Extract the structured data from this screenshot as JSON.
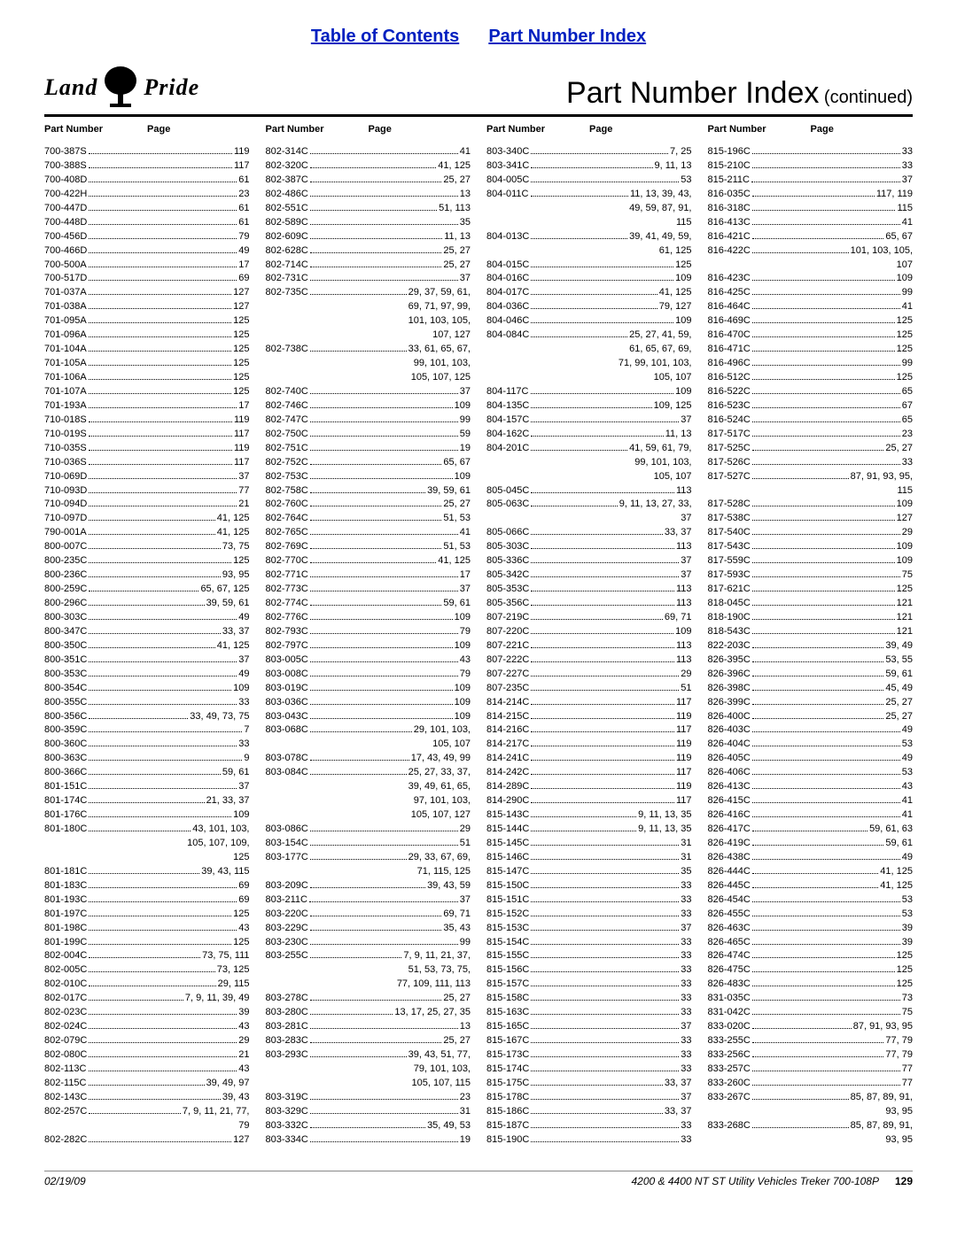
{
  "links": {
    "toc": "Table of Contents",
    "pni": "Part Number Index"
  },
  "logo": {
    "left": "Land",
    "right": "Pride"
  },
  "title": {
    "main": "Part Number Index",
    "cont": " (continued)"
  },
  "colhead": {
    "pn": "Part Number",
    "pg": "Page"
  },
  "footer": {
    "date": "02/19/09",
    "model": "4200 & 4400 NT ST Utility Vehicles Treker 700-108P",
    "page": "129"
  },
  "cols": [
    [
      {
        "p": "700-387S",
        "g": "119"
      },
      {
        "p": "700-388S",
        "g": "117"
      },
      {
        "p": "700-408D",
        "g": "61"
      },
      {
        "p": "700-422H",
        "g": "23"
      },
      {
        "p": "700-447D",
        "g": "61"
      },
      {
        "p": "700-448D",
        "g": "61"
      },
      {
        "p": "700-456D",
        "g": "79"
      },
      {
        "p": "700-466D",
        "g": "49"
      },
      {
        "p": "700-500A",
        "g": "17"
      },
      {
        "p": "700-517D",
        "g": "69"
      },
      {
        "p": "701-037A",
        "g": "127"
      },
      {
        "p": "701-038A",
        "g": "127"
      },
      {
        "p": "701-095A",
        "g": "125"
      },
      {
        "p": "701-096A",
        "g": "125"
      },
      {
        "p": "701-104A",
        "g": "125"
      },
      {
        "p": "701-105A",
        "g": "125"
      },
      {
        "p": "701-106A",
        "g": "125"
      },
      {
        "p": "701-107A",
        "g": "125"
      },
      {
        "p": "701-193A",
        "g": "17"
      },
      {
        "p": "710-018S",
        "g": "119"
      },
      {
        "p": "710-019S",
        "g": "117"
      },
      {
        "p": "710-035S",
        "g": "119"
      },
      {
        "p": "710-036S",
        "g": "117"
      },
      {
        "p": "710-069D",
        "g": "37"
      },
      {
        "p": "710-093D",
        "g": "77"
      },
      {
        "p": "710-094D",
        "g": "21"
      },
      {
        "p": "710-097D",
        "g": "41, 125"
      },
      {
        "p": "790-001A",
        "g": "41, 125"
      },
      {
        "p": "800-007C",
        "g": "73, 75"
      },
      {
        "p": "800-235C",
        "g": "125"
      },
      {
        "p": "800-236C",
        "g": "93, 95"
      },
      {
        "p": "800-259C",
        "g": "65, 67, 125"
      },
      {
        "p": "800-296C",
        "g": "39, 59, 61"
      },
      {
        "p": "800-303C",
        "g": "49"
      },
      {
        "p": "800-347C",
        "g": "33, 37"
      },
      {
        "p": "800-350C",
        "g": "41, 125"
      },
      {
        "p": "800-351C",
        "g": "37"
      },
      {
        "p": "800-353C",
        "g": "49"
      },
      {
        "p": "800-354C",
        "g": "109"
      },
      {
        "p": "800-355C",
        "g": "33"
      },
      {
        "p": "800-356C",
        "g": "33, 49, 73, 75"
      },
      {
        "p": "800-359C",
        "g": "7"
      },
      {
        "p": "800-360C",
        "g": "33"
      },
      {
        "p": "800-363C",
        "g": "9"
      },
      {
        "p": "800-366C",
        "g": "59, 61"
      },
      {
        "p": "801-151C",
        "g": "37"
      },
      {
        "p": "801-174C",
        "g": "21, 33, 37"
      },
      {
        "p": "801-176C",
        "g": "109"
      },
      {
        "p": "801-180C",
        "g": "43, 101, 103,"
      },
      {
        "c": true,
        "g": "105, 107, 109,"
      },
      {
        "c": true,
        "g": "125"
      },
      {
        "p": "801-181C",
        "g": "39, 43, 115"
      },
      {
        "p": "801-183C",
        "g": "69"
      },
      {
        "p": "801-193C",
        "g": "69"
      },
      {
        "p": "801-197C",
        "g": "125"
      },
      {
        "p": "801-198C",
        "g": "43"
      },
      {
        "p": "801-199C",
        "g": "125"
      },
      {
        "p": "802-004C",
        "g": "73, 75, 111"
      },
      {
        "p": "802-005C",
        "g": "73, 125"
      },
      {
        "p": "802-010C",
        "g": "29, 115"
      },
      {
        "p": "802-017C",
        "g": "7, 9, 11, 39, 49"
      },
      {
        "p": "802-023C",
        "g": "39"
      },
      {
        "p": "802-024C",
        "g": "43"
      },
      {
        "p": "802-079C",
        "g": "29"
      },
      {
        "p": "802-080C",
        "g": "21"
      },
      {
        "p": "802-113C",
        "g": "43"
      },
      {
        "p": "802-115C",
        "g": "39, 49, 97"
      },
      {
        "p": "802-143C",
        "g": "39, 43"
      },
      {
        "p": "802-257C",
        "g": "7, 9, 11, 21, 77,"
      },
      {
        "c": true,
        "g": "79"
      },
      {
        "p": "802-282C",
        "g": "127"
      }
    ],
    [
      {
        "p": "802-314C",
        "g": "41"
      },
      {
        "p": "802-320C",
        "g": "41, 125"
      },
      {
        "p": "802-387C",
        "g": "25, 27"
      },
      {
        "p": "802-486C",
        "g": "13"
      },
      {
        "p": "802-551C",
        "g": "51, 113"
      },
      {
        "p": "802-589C",
        "g": "35"
      },
      {
        "p": "802-609C",
        "g": "11, 13"
      },
      {
        "p": "802-628C",
        "g": "25, 27"
      },
      {
        "p": "802-714C",
        "g": "25, 27"
      },
      {
        "p": "802-731C",
        "g": "37"
      },
      {
        "p": "802-735C",
        "g": "29, 37, 59, 61,"
      },
      {
        "c": true,
        "g": "69, 71, 97, 99,"
      },
      {
        "c": true,
        "g": "101, 103, 105,"
      },
      {
        "c": true,
        "g": "107, 127"
      },
      {
        "p": "802-738C",
        "g": "33, 61, 65, 67,"
      },
      {
        "c": true,
        "g": "99, 101, 103,"
      },
      {
        "c": true,
        "g": "105, 107, 125"
      },
      {
        "p": "802-740C",
        "g": "37"
      },
      {
        "p": "802-746C",
        "g": "109"
      },
      {
        "p": "802-747C",
        "g": "99"
      },
      {
        "p": "802-750C",
        "g": "59"
      },
      {
        "p": "802-751C",
        "g": "19"
      },
      {
        "p": "802-752C",
        "g": "65, 67"
      },
      {
        "p": "802-753C",
        "g": "109"
      },
      {
        "p": "802-758C",
        "g": "39, 59, 61"
      },
      {
        "p": "802-760C",
        "g": "25, 27"
      },
      {
        "p": "802-764C",
        "g": "51, 53"
      },
      {
        "p": "802-765C",
        "g": "41"
      },
      {
        "p": "802-769C",
        "g": "51, 53"
      },
      {
        "p": "802-770C",
        "g": "41, 125"
      },
      {
        "p": "802-771C",
        "g": "17"
      },
      {
        "p": "802-773C",
        "g": "37"
      },
      {
        "p": "802-774C",
        "g": "59, 61"
      },
      {
        "p": "802-776C",
        "g": "109"
      },
      {
        "p": "802-793C",
        "g": "79"
      },
      {
        "p": "802-797C",
        "g": "109"
      },
      {
        "p": "803-005C",
        "g": "43"
      },
      {
        "p": "803-008C",
        "g": "79"
      },
      {
        "p": "803-019C",
        "g": "109"
      },
      {
        "p": "803-036C",
        "g": "109"
      },
      {
        "p": "803-043C",
        "g": "109"
      },
      {
        "p": "803-068C",
        "g": "29, 101, 103,"
      },
      {
        "c": true,
        "g": "105, 107"
      },
      {
        "p": "803-078C",
        "g": "17, 43, 49, 99"
      },
      {
        "p": "803-084C",
        "g": "25, 27, 33, 37,"
      },
      {
        "c": true,
        "g": "39, 49, 61, 65,"
      },
      {
        "c": true,
        "g": "97, 101, 103,"
      },
      {
        "c": true,
        "g": "105, 107, 127"
      },
      {
        "p": "803-086C",
        "g": "29"
      },
      {
        "p": "803-154C",
        "g": "51"
      },
      {
        "p": "803-177C",
        "g": "29, 33, 67, 69,"
      },
      {
        "c": true,
        "g": "71, 115, 125"
      },
      {
        "p": "803-209C",
        "g": "39, 43, 59"
      },
      {
        "p": "803-211C",
        "g": "37"
      },
      {
        "p": "803-220C",
        "g": "69, 71"
      },
      {
        "p": "803-229C",
        "g": "35, 43"
      },
      {
        "p": "803-230C",
        "g": "99"
      },
      {
        "p": "803-255C",
        "g": "7, 9, 11, 21, 37,"
      },
      {
        "c": true,
        "g": "51, 53, 73, 75,"
      },
      {
        "c": true,
        "g": "77, 109, 111, 113"
      },
      {
        "p": "803-278C",
        "g": "25, 27"
      },
      {
        "p": "803-280C",
        "g": "13, 17, 25, 27, 35"
      },
      {
        "p": "803-281C",
        "g": "13"
      },
      {
        "p": "803-283C",
        "g": "25, 27"
      },
      {
        "p": "803-293C",
        "g": "39, 43, 51, 77,"
      },
      {
        "c": true,
        "g": "79, 101, 103,"
      },
      {
        "c": true,
        "g": "105, 107, 115"
      },
      {
        "p": "803-319C",
        "g": "23"
      },
      {
        "p": "803-329C",
        "g": "31"
      },
      {
        "p": "803-332C",
        "g": "35, 49, 53"
      },
      {
        "p": "803-334C",
        "g": "19"
      }
    ],
    [
      {
        "p": "803-340C",
        "g": "7, 25"
      },
      {
        "p": "803-341C",
        "g": "9, 11, 13"
      },
      {
        "p": "804-005C",
        "g": "53"
      },
      {
        "p": "804-011C",
        "g": "11, 13, 39, 43,"
      },
      {
        "c": true,
        "g": "49, 59, 87, 91,"
      },
      {
        "c": true,
        "g": "115"
      },
      {
        "p": "804-013C",
        "g": "39, 41, 49, 59,"
      },
      {
        "c": true,
        "g": "61, 125"
      },
      {
        "p": "804-015C",
        "g": "125"
      },
      {
        "p": "804-016C",
        "g": "109"
      },
      {
        "p": "804-017C",
        "g": "41, 125"
      },
      {
        "p": "804-036C",
        "g": "79, 127"
      },
      {
        "p": "804-046C",
        "g": "109"
      },
      {
        "p": "804-084C",
        "g": "25, 27, 41, 59,"
      },
      {
        "c": true,
        "g": "61, 65, 67, 69,"
      },
      {
        "c": true,
        "g": "71, 99, 101, 103,"
      },
      {
        "c": true,
        "g": "105, 107"
      },
      {
        "p": "804-117C",
        "g": "109"
      },
      {
        "p": "804-135C",
        "g": "109, 125"
      },
      {
        "p": "804-157C",
        "g": "37"
      },
      {
        "p": "804-162C",
        "g": "11, 13"
      },
      {
        "p": "804-201C",
        "g": "41, 59, 61, 79,"
      },
      {
        "c": true,
        "g": "99, 101, 103,"
      },
      {
        "c": true,
        "g": "105, 107"
      },
      {
        "p": "805-045C",
        "g": "113"
      },
      {
        "p": "805-063C",
        "g": "9, 11, 13, 27, 33,"
      },
      {
        "c": true,
        "g": "37"
      },
      {
        "p": "805-066C",
        "g": "33, 37"
      },
      {
        "p": "805-303C",
        "g": "113"
      },
      {
        "p": "805-336C",
        "g": "37"
      },
      {
        "p": "805-342C",
        "g": "37"
      },
      {
        "p": "805-353C",
        "g": "113"
      },
      {
        "p": "805-356C",
        "g": "113"
      },
      {
        "p": "807-219C",
        "g": "69, 71"
      },
      {
        "p": "807-220C",
        "g": "109"
      },
      {
        "p": "807-221C",
        "g": "113"
      },
      {
        "p": "807-222C",
        "g": "113"
      },
      {
        "p": "807-227C",
        "g": "29"
      },
      {
        "p": "807-235C",
        "g": "51"
      },
      {
        "p": "814-214C",
        "g": "117"
      },
      {
        "p": "814-215C",
        "g": "119"
      },
      {
        "p": "814-216C",
        "g": "117"
      },
      {
        "p": "814-217C",
        "g": "119"
      },
      {
        "p": "814-241C",
        "g": "119"
      },
      {
        "p": "814-242C",
        "g": "117"
      },
      {
        "p": "814-289C",
        "g": "119"
      },
      {
        "p": "814-290C",
        "g": "117"
      },
      {
        "p": "815-143C",
        "g": "9, 11, 13, 35"
      },
      {
        "p": "815-144C",
        "g": "9, 11, 13, 35"
      },
      {
        "p": "815-145C",
        "g": "31"
      },
      {
        "p": "815-146C",
        "g": "31"
      },
      {
        "p": "815-147C",
        "g": "35"
      },
      {
        "p": "815-150C",
        "g": "33"
      },
      {
        "p": "815-151C",
        "g": "33"
      },
      {
        "p": "815-152C",
        "g": "33"
      },
      {
        "p": "815-153C",
        "g": "37"
      },
      {
        "p": "815-154C",
        "g": "33"
      },
      {
        "p": "815-155C",
        "g": "33"
      },
      {
        "p": "815-156C",
        "g": "33"
      },
      {
        "p": "815-157C",
        "g": "33"
      },
      {
        "p": "815-158C",
        "g": "33"
      },
      {
        "p": "815-163C",
        "g": "33"
      },
      {
        "p": "815-165C",
        "g": "37"
      },
      {
        "p": "815-167C",
        "g": "33"
      },
      {
        "p": "815-173C",
        "g": "33"
      },
      {
        "p": "815-174C",
        "g": "33"
      },
      {
        "p": "815-175C",
        "g": "33, 37"
      },
      {
        "p": "815-178C",
        "g": "37"
      },
      {
        "p": "815-186C",
        "g": "33, 37"
      },
      {
        "p": "815-187C",
        "g": "33"
      },
      {
        "p": "815-190C",
        "g": "33"
      }
    ],
    [
      {
        "p": "815-196C",
        "g": "33"
      },
      {
        "p": "815-210C",
        "g": "33"
      },
      {
        "p": "815-211C",
        "g": "37"
      },
      {
        "p": "816-035C",
        "g": "117, 119"
      },
      {
        "p": "816-318C",
        "g": "115"
      },
      {
        "p": "816-413C",
        "g": "41"
      },
      {
        "p": "816-421C",
        "g": "65, 67"
      },
      {
        "p": "816-422C",
        "g": "101, 103, 105,"
      },
      {
        "c": true,
        "g": "107"
      },
      {
        "p": "816-423C",
        "g": "109"
      },
      {
        "p": "816-425C",
        "g": "99"
      },
      {
        "p": "816-464C",
        "g": "41"
      },
      {
        "p": "816-469C",
        "g": "125"
      },
      {
        "p": "816-470C",
        "g": "125"
      },
      {
        "p": "816-471C",
        "g": "125"
      },
      {
        "p": "816-496C",
        "g": "99"
      },
      {
        "p": "816-512C",
        "g": "125"
      },
      {
        "p": "816-522C",
        "g": "65"
      },
      {
        "p": "816-523C",
        "g": "67"
      },
      {
        "p": "816-524C",
        "g": "65"
      },
      {
        "p": "817-517C",
        "g": "23"
      },
      {
        "p": "817-525C",
        "g": "25, 27"
      },
      {
        "p": "817-526C",
        "g": "33"
      },
      {
        "p": "817-527C",
        "g": "87, 91, 93, 95,"
      },
      {
        "c": true,
        "g": "115"
      },
      {
        "p": "817-528C",
        "g": "109"
      },
      {
        "p": "817-538C",
        "g": "127"
      },
      {
        "p": "817-540C",
        "g": "29"
      },
      {
        "p": "817-543C",
        "g": "109"
      },
      {
        "p": "817-559C",
        "g": "109"
      },
      {
        "p": "817-593C",
        "g": "75"
      },
      {
        "p": "817-621C",
        "g": "125"
      },
      {
        "p": "818-045C",
        "g": "121"
      },
      {
        "p": "818-190C",
        "g": "121"
      },
      {
        "p": "818-543C",
        "g": "121"
      },
      {
        "p": "822-203C",
        "g": "39, 49"
      },
      {
        "p": "826-395C",
        "g": "53, 55"
      },
      {
        "p": "826-396C",
        "g": "59, 61"
      },
      {
        "p": "826-398C",
        "g": "45, 49"
      },
      {
        "p": "826-399C",
        "g": "25, 27"
      },
      {
        "p": "826-400C",
        "g": "25, 27"
      },
      {
        "p": "826-403C",
        "g": "49"
      },
      {
        "p": "826-404C",
        "g": "53"
      },
      {
        "p": "826-405C",
        "g": "49"
      },
      {
        "p": "826-406C",
        "g": "53"
      },
      {
        "p": "826-413C",
        "g": "43"
      },
      {
        "p": "826-415C",
        "g": "41"
      },
      {
        "p": "826-416C",
        "g": "41"
      },
      {
        "p": "826-417C",
        "g": "59, 61, 63"
      },
      {
        "p": "826-419C",
        "g": "59, 61"
      },
      {
        "p": "826-438C",
        "g": "49"
      },
      {
        "p": "826-444C",
        "g": "41, 125"
      },
      {
        "p": "826-445C",
        "g": "41, 125"
      },
      {
        "p": "826-454C",
        "g": "53"
      },
      {
        "p": "826-455C",
        "g": "53"
      },
      {
        "p": "826-463C",
        "g": "39"
      },
      {
        "p": "826-465C",
        "g": "39"
      },
      {
        "p": "826-474C",
        "g": "125"
      },
      {
        "p": "826-475C",
        "g": "125"
      },
      {
        "p": "826-483C",
        "g": "125"
      },
      {
        "p": "831-035C",
        "g": "73"
      },
      {
        "p": "831-042C",
        "g": "75"
      },
      {
        "p": "833-020C",
        "g": "87, 91, 93, 95"
      },
      {
        "p": "833-255C",
        "g": "77, 79"
      },
      {
        "p": "833-256C",
        "g": "77, 79"
      },
      {
        "p": "833-257C",
        "g": "77"
      },
      {
        "p": "833-260C",
        "g": "77"
      },
      {
        "p": "833-267C",
        "g": "85, 87, 89, 91,"
      },
      {
        "c": true,
        "g": "93, 95"
      },
      {
        "p": "833-268C",
        "g": "85, 87, 89, 91,"
      },
      {
        "c": true,
        "g": "93, 95"
      }
    ]
  ]
}
